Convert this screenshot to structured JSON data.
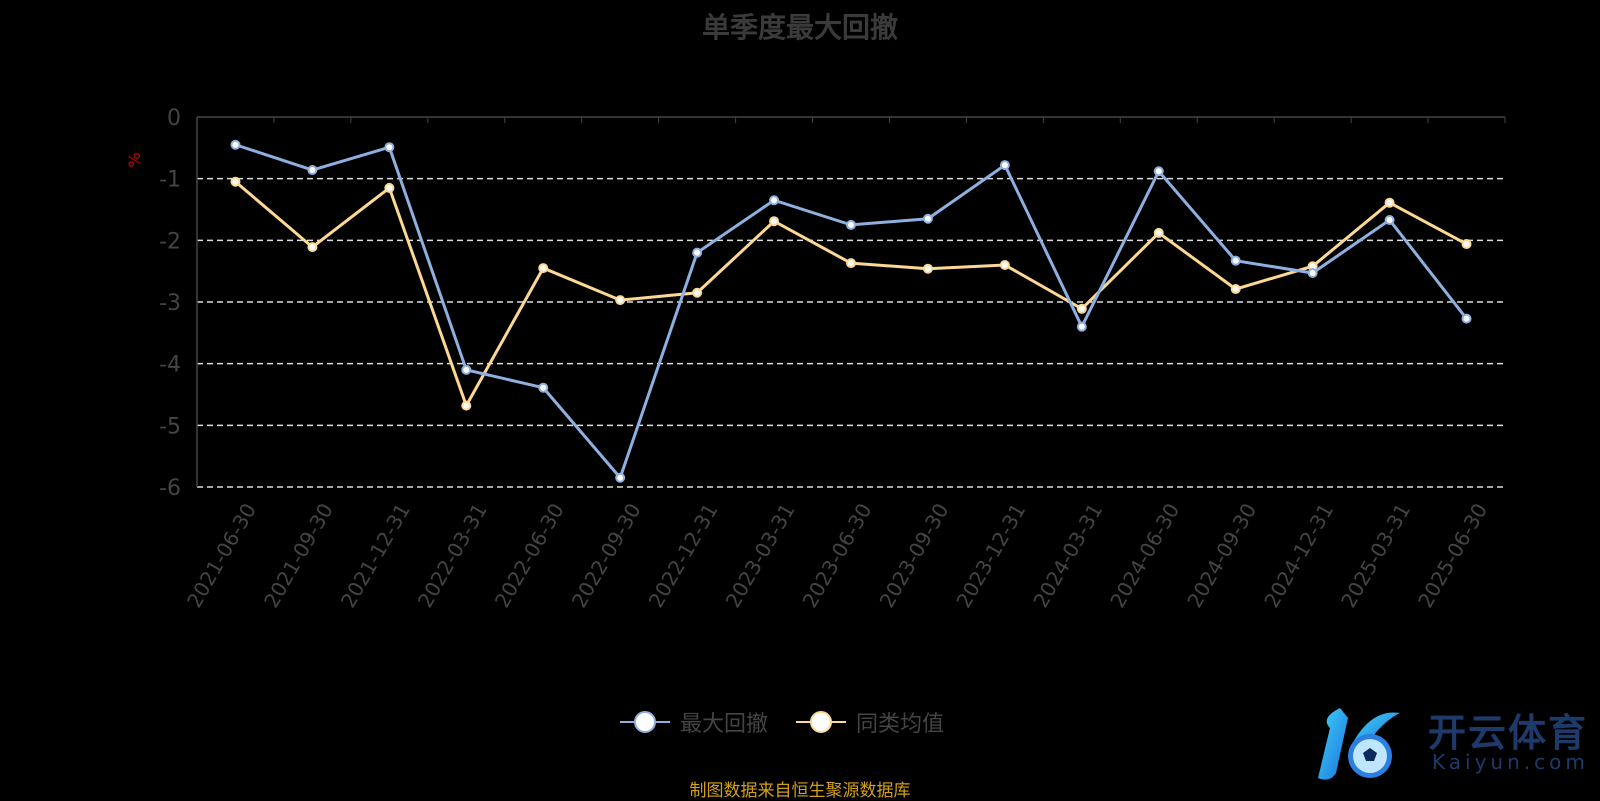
{
  "chart_data": {
    "type": "line",
    "title": "单季度最大回撤",
    "ylabel": "%",
    "xlabel": "",
    "ylim": [
      -6,
      0
    ],
    "yticks": [
      0,
      -1,
      -2,
      -3,
      -4,
      -5,
      -6
    ],
    "grid": true,
    "legend_position": "bottom",
    "categories": [
      "2021-06-30",
      "2021-09-30",
      "2021-12-31",
      "2022-03-31",
      "2022-06-30",
      "2022-09-30",
      "2022-12-31",
      "2023-03-31",
      "2023-06-30",
      "2023-09-30",
      "2023-12-31",
      "2024-03-31",
      "2024-06-30",
      "2024-09-30",
      "2024-12-31",
      "2025-03-31",
      "2025-06-30"
    ],
    "series": [
      {
        "name": "最大回撤",
        "color": "#8eb0e0",
        "values": [
          -0.45,
          -0.86,
          -0.49,
          -4.1,
          -4.39,
          -5.85,
          -2.2,
          -1.35,
          -1.75,
          -1.65,
          -0.78,
          -3.4,
          -0.88,
          -2.33,
          -2.53,
          -1.67,
          -3.27
        ]
      },
      {
        "name": "同类均值",
        "color": "#fcd893",
        "values": [
          -1.05,
          -2.11,
          -1.15,
          -4.68,
          -2.45,
          -2.97,
          -2.85,
          -1.69,
          -2.37,
          -2.46,
          -2.4,
          -3.11,
          -1.88,
          -2.79,
          -2.42,
          -1.39,
          -2.06
        ]
      }
    ]
  },
  "source": "制图数据来自恒生聚源数据库",
  "watermark": {
    "cn": "开云体育",
    "en": "Kaiyun.com"
  }
}
